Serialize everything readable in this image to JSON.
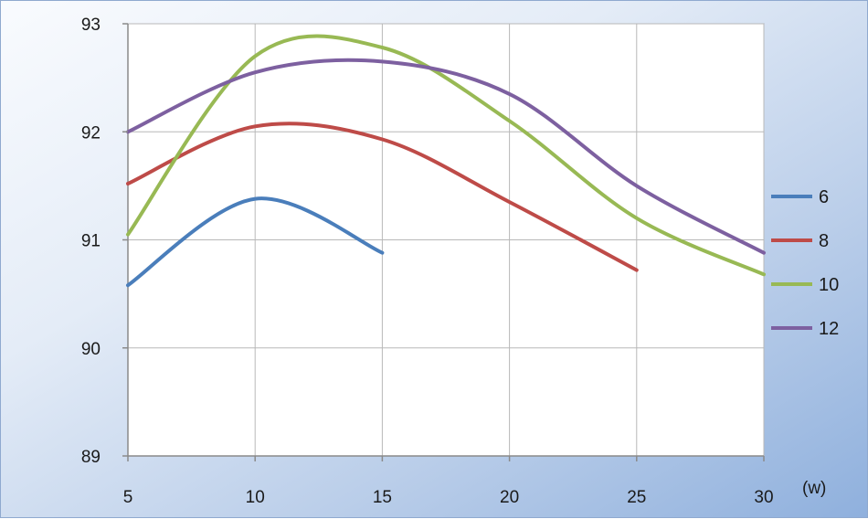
{
  "chart_data": {
    "type": "line",
    "x_unit": "(w)",
    "xlim": [
      5,
      30
    ],
    "ylim": [
      89,
      93
    ],
    "x_ticks": [
      5,
      10,
      15,
      20,
      25,
      30
    ],
    "y_ticks": [
      89,
      90,
      91,
      92,
      93
    ],
    "grid": true,
    "legend_position": "right",
    "series": [
      {
        "name": "6",
        "color": "#4a7ebb",
        "x": [
          5,
          10,
          15
        ],
        "y": [
          90.58,
          91.38,
          90.88
        ]
      },
      {
        "name": "8",
        "color": "#be4b48",
        "x": [
          5,
          10,
          15,
          20,
          25
        ],
        "y": [
          91.52,
          92.05,
          91.93,
          91.35,
          90.72
        ]
      },
      {
        "name": "10",
        "color": "#98b954",
        "x": [
          5,
          10,
          15,
          20,
          25,
          30
        ],
        "y": [
          91.05,
          92.7,
          92.78,
          92.1,
          91.2,
          90.68
        ]
      },
      {
        "name": "12",
        "color": "#7d60a0",
        "x": [
          5,
          10,
          15,
          20,
          25,
          30
        ],
        "y": [
          92.0,
          92.55,
          92.65,
          92.35,
          91.5,
          90.88
        ]
      }
    ]
  }
}
